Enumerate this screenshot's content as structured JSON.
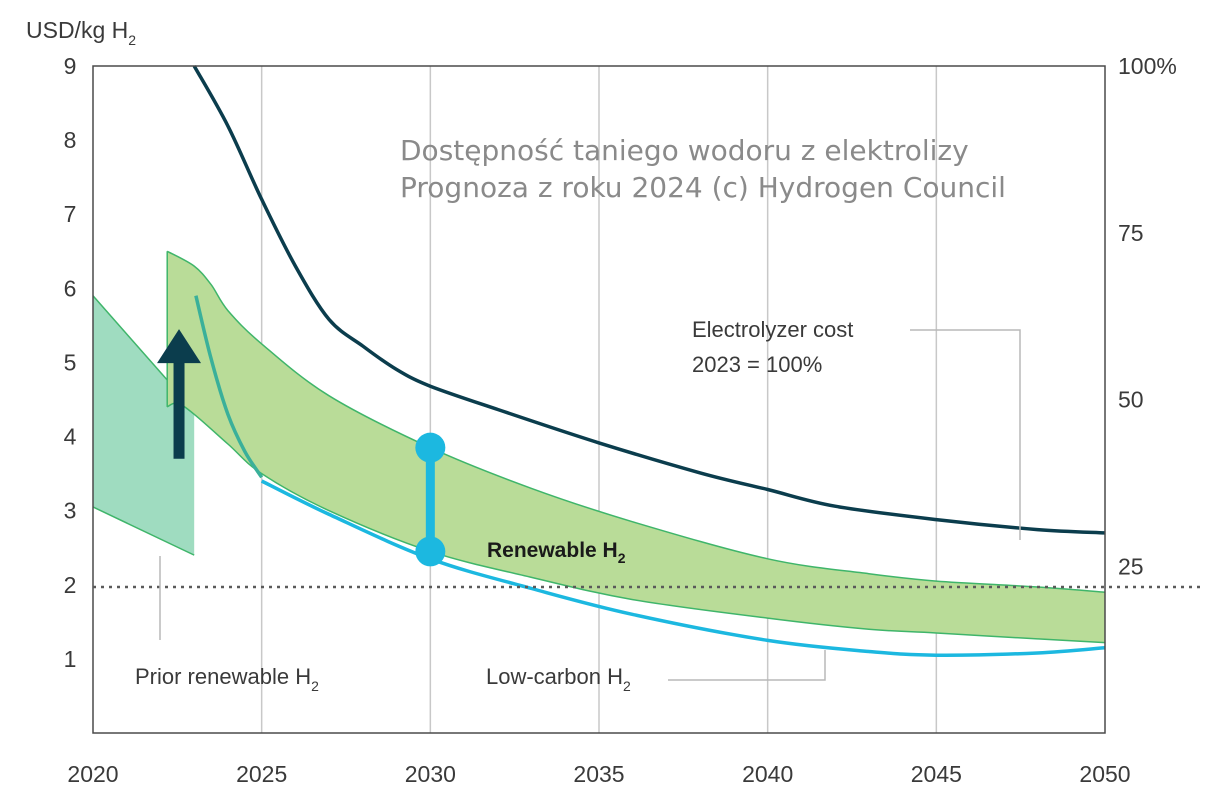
{
  "chart_data": {
    "type": "area",
    "overlay_title": [
      "Dostępność taniego wodoru z elektrolizy",
      "Prognoza z roku 2024 (c) Hydrogen Council"
    ],
    "y_left_unit": "USD/kg H",
    "y_left_unit_sub": "2",
    "xlim": [
      2020,
      2050
    ],
    "ylim_left": [
      0,
      9
    ],
    "ylim_right": [
      0,
      100
    ],
    "x_ticks": [
      "2020",
      "2025",
      "2030",
      "2035",
      "2040",
      "2045",
      "2050"
    ],
    "y_left_ticks": [
      "1",
      "2",
      "3",
      "4",
      "5",
      "6",
      "7",
      "8",
      "9"
    ],
    "y_right_ticks": [
      "25",
      "50",
      "75",
      "100%"
    ],
    "reference_line": {
      "y": 1.97,
      "style": "dotted"
    },
    "colors": {
      "electrolyzer": "#0b3d4d",
      "low_carbon": "#1cb8e0",
      "renewable_fill": "#b9dc98",
      "renewable_edge": "#3fb56a",
      "prior_fill": "#9fdcc0",
      "prior_edge": "#3fb56a",
      "arrow": "#0b3d4d",
      "gap_marker": "#1cb8e0",
      "grid": "#c8c8c8"
    },
    "series": [
      {
        "name": "Electrolyzer cost",
        "axis": "right",
        "x": [
          2023,
          2024,
          2025,
          2026,
          2027,
          2028,
          2029,
          2030,
          2032,
          2035,
          2038,
          2040,
          2042,
          2045,
          2048,
          2050
        ],
        "y": [
          100,
          91,
          80,
          70,
          62,
          58,
          54.5,
          52,
          48.5,
          43.5,
          39,
          36.5,
          34,
          32,
          30.5,
          30
        ]
      },
      {
        "name": "Low-carbon H",
        "name_sub": "2",
        "axis": "left",
        "x": [
          2025,
          2027,
          2030,
          2033,
          2036,
          2040,
          2043,
          2045,
          2048,
          2050
        ],
        "y": [
          3.4,
          2.95,
          2.35,
          1.95,
          1.6,
          1.25,
          1.1,
          1.05,
          1.08,
          1.15
        ]
      },
      {
        "name": "Renewable H",
        "name_sub": "2",
        "axis": "left",
        "band": true,
        "x": [
          2022.2,
          2023,
          2023.5,
          2024,
          2025,
          2027,
          2030,
          2033,
          2036,
          2040,
          2043,
          2045,
          2048,
          2050
        ],
        "upper": [
          6.5,
          6.3,
          6.05,
          5.7,
          5.25,
          4.55,
          3.85,
          3.3,
          2.85,
          2.35,
          2.15,
          2.05,
          1.97,
          1.9
        ],
        "lower_x": [
          2022.2,
          2022.5,
          2023,
          2024,
          2025,
          2027,
          2030,
          2033,
          2036,
          2040,
          2043,
          2045,
          2048,
          2050
        ],
        "lower": [
          4.4,
          4.45,
          4.3,
          3.9,
          3.5,
          3.0,
          2.45,
          2.1,
          1.8,
          1.55,
          1.4,
          1.35,
          1.27,
          1.22
        ]
      },
      {
        "name": "Prior renewable H",
        "name_sub": "2",
        "axis": "left",
        "band": true,
        "x": [
          2020,
          2023
        ],
        "upper": [
          5.9,
          4.35
        ],
        "lower": [
          3.05,
          2.4
        ]
      }
    ],
    "renewable_steep_line": {
      "x": [
        2023.05,
        2023.5,
        2024,
        2024.5,
        2025
      ],
      "y": [
        5.9,
        5.05,
        4.3,
        3.8,
        3.45
      ]
    },
    "arrow": {
      "x": 2022.55,
      "from": 3.7,
      "to": 5.45
    },
    "gap_marker": {
      "x": 2030,
      "y_top": 3.85,
      "y_bottom": 2.45
    },
    "annotations": [
      {
        "lines": [
          "Electrolyzer cost",
          "2023 = 100%"
        ]
      },
      {
        "text": "Renewable H",
        "sub": "2"
      },
      {
        "text": "Prior renewable H",
        "sub": "2"
      },
      {
        "text": "Low-carbon H",
        "sub": "2"
      }
    ]
  }
}
